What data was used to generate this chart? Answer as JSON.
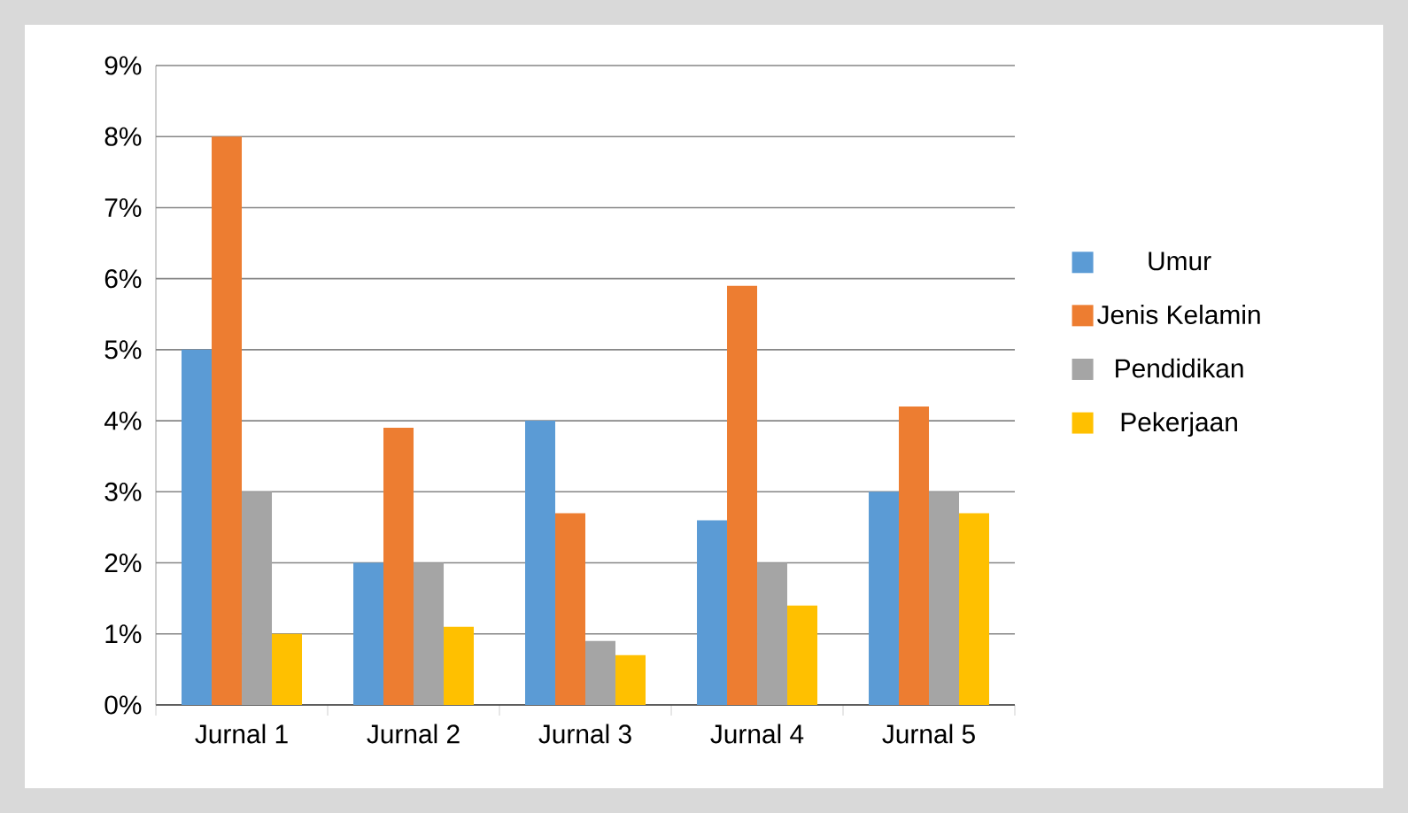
{
  "chart_data": {
    "type": "bar",
    "categories": [
      "Jurnal 1",
      "Jurnal 2",
      "Jurnal 3",
      "Jurnal 4",
      "Jurnal 5"
    ],
    "series": [
      {
        "name": "Umur",
        "color": "#5b9bd5",
        "values": [
          5,
          2,
          4,
          2.6,
          3
        ]
      },
      {
        "name": "Jenis Kelamin",
        "color": "#ed7d31",
        "values": [
          8,
          3.9,
          2.7,
          5.9,
          4.2
        ]
      },
      {
        "name": "Pendidikan",
        "color": "#a5a5a5",
        "values": [
          3,
          2,
          0.9,
          2,
          3
        ]
      },
      {
        "name": "Pekerjaan",
        "color": "#ffc000",
        "values": [
          1,
          1.1,
          0.7,
          1.4,
          2.7
        ]
      }
    ],
    "ylim": [
      0,
      9
    ],
    "yticks": [
      {
        "value": 0,
        "label": "0%"
      },
      {
        "value": 1,
        "label": "1%"
      },
      {
        "value": 2,
        "label": "2%"
      },
      {
        "value": 3,
        "label": "3%"
      },
      {
        "value": 4,
        "label": "4%"
      },
      {
        "value": 5,
        "label": "5%"
      },
      {
        "value": 6,
        "label": "6%"
      },
      {
        "value": 7,
        "label": "7%"
      },
      {
        "value": 8,
        "label": "8%"
      },
      {
        "value": 9,
        "label": "9%"
      }
    ],
    "grid": "y",
    "legend": "right"
  }
}
